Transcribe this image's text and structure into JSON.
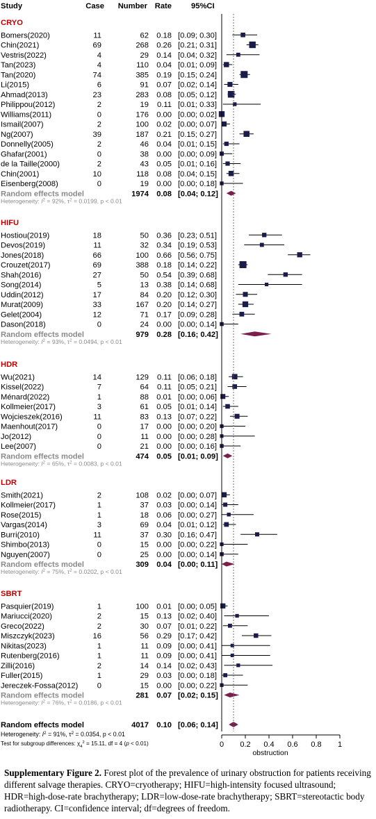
{
  "chart_data": {
    "type": "forest",
    "header": {
      "study": "Study",
      "case": "Case",
      "number": "Number",
      "rate": "Rate",
      "ci": "95%CI"
    },
    "xaxis": {
      "ticks": [
        "0",
        "0.2",
        "0.4",
        "0.6",
        "0.8",
        "1"
      ],
      "tick_values": [
        0,
        0.2,
        0.4,
        0.6,
        0.8,
        1
      ],
      "label": "obstruction",
      "range": [
        0,
        1
      ]
    },
    "overall_reference": 0.1,
    "colors": {
      "group": "#c00000",
      "square": "#1c1c4a",
      "diamond": "#7a1f4a",
      "model_label": "#8a8a8a",
      "het": "#555555"
    },
    "groups": [
      {
        "name": "CRYO",
        "studies": [
          {
            "study": "Bomers(2020)",
            "case": "11",
            "number": "62",
            "rate": "0.18",
            "ci": "[0.09; 0.30]",
            "est": 0.18,
            "lo": 0.09,
            "hi": 0.3
          },
          {
            "study": "Chin(2021)",
            "case": "69",
            "number": "268",
            "rate": "0.26",
            "ci": "[0.21; 0.31]",
            "est": 0.26,
            "lo": 0.21,
            "hi": 0.31
          },
          {
            "study": "Vestris(2022)",
            "case": "4",
            "number": "29",
            "rate": "0.14",
            "ci": "[0.04; 0.32]",
            "est": 0.14,
            "lo": 0.04,
            "hi": 0.32
          },
          {
            "study": "Tan(2023)",
            "case": "4",
            "number": "110",
            "rate": "0.04",
            "ci": "[0.01; 0.09]",
            "est": 0.04,
            "lo": 0.01,
            "hi": 0.09
          },
          {
            "study": "Tan(2020)",
            "case": "74",
            "number": "385",
            "rate": "0.19",
            "ci": "[0.15; 0.24]",
            "est": 0.19,
            "lo": 0.15,
            "hi": 0.24
          },
          {
            "study": "Li(2015)",
            "case": "6",
            "number": "91",
            "rate": "0.07",
            "ci": "[0.02; 0.14]",
            "est": 0.07,
            "lo": 0.02,
            "hi": 0.14
          },
          {
            "study": "Ahmad(2013)",
            "case": "23",
            "number": "283",
            "rate": "0.08",
            "ci": "[0.05; 0.12]",
            "est": 0.08,
            "lo": 0.05,
            "hi": 0.12
          },
          {
            "study": "Philippou(2012)",
            "case": "2",
            "number": "19",
            "rate": "0.11",
            "ci": "[0.01; 0.33]",
            "est": 0.11,
            "lo": 0.01,
            "hi": 0.33
          },
          {
            "study": "Williams(2011)",
            "case": "0",
            "number": "176",
            "rate": "0.00",
            "ci": "[0.00; 0.02]",
            "est": 0.0,
            "lo": 0.0,
            "hi": 0.02
          },
          {
            "study": "Ismail(2007)",
            "case": "2",
            "number": "100",
            "rate": "0.02",
            "ci": "[0.00; 0.07]",
            "est": 0.02,
            "lo": 0.0,
            "hi": 0.07
          },
          {
            "study": "Ng(2007)",
            "case": "39",
            "number": "187",
            "rate": "0.21",
            "ci": "[0.15; 0.27]",
            "est": 0.21,
            "lo": 0.15,
            "hi": 0.27
          },
          {
            "study": "Donnelly(2005)",
            "case": "2",
            "number": "46",
            "rate": "0.04",
            "ci": "[0.01; 0.15]",
            "est": 0.04,
            "lo": 0.01,
            "hi": 0.15
          },
          {
            "study": "Ghafar(2001)",
            "case": "0",
            "number": "38",
            "rate": "0.00",
            "ci": "[0.00; 0.09]",
            "est": 0.0,
            "lo": 0.0,
            "hi": 0.09
          },
          {
            "study": "de la Taille(2000)",
            "case": "2",
            "number": "43",
            "rate": "0.05",
            "ci": "[0.01; 0.16]",
            "est": 0.05,
            "lo": 0.01,
            "hi": 0.16
          },
          {
            "study": "Chin(2001)",
            "case": "10",
            "number": "118",
            "rate": "0.08",
            "ci": "[0.04; 0.15]",
            "est": 0.08,
            "lo": 0.04,
            "hi": 0.15
          },
          {
            "study": "Eisenberg(2008)",
            "case": "0",
            "number": "19",
            "rate": "0.00",
            "ci": "[0.00; 0.18]",
            "est": 0.0,
            "lo": 0.0,
            "hi": 0.18
          }
        ],
        "model": {
          "label": "Random effects model",
          "number": "1974",
          "rate": "0.08",
          "ci": "[0.04; 0.12]",
          "est": 0.08,
          "lo": 0.04,
          "hi": 0.12
        },
        "het": {
          "i2": "92%",
          "tau2": "0.0199",
          "p": "< 0.01"
        }
      },
      {
        "name": "HIFU",
        "studies": [
          {
            "study": "Hostiou(2019)",
            "case": "18",
            "number": "50",
            "rate": "0.36",
            "ci": "[0.23; 0.51]",
            "est": 0.36,
            "lo": 0.23,
            "hi": 0.51
          },
          {
            "study": "Devos(2019)",
            "case": "11",
            "number": "32",
            "rate": "0.34",
            "ci": "[0.19; 0.53]",
            "est": 0.34,
            "lo": 0.19,
            "hi": 0.53
          },
          {
            "study": "Jones(2018)",
            "case": "66",
            "number": "100",
            "rate": "0.66",
            "ci": "[0.56; 0.75]",
            "est": 0.66,
            "lo": 0.56,
            "hi": 0.75
          },
          {
            "study": "Crouzet(2017)",
            "case": "69",
            "number": "388",
            "rate": "0.18",
            "ci": "[0.14; 0.22]",
            "est": 0.18,
            "lo": 0.14,
            "hi": 0.22
          },
          {
            "study": "Shah(2016)",
            "case": "27",
            "number": "50",
            "rate": "0.54",
            "ci": "[0.39; 0.68]",
            "est": 0.54,
            "lo": 0.39,
            "hi": 0.68
          },
          {
            "study": "Song(2014)",
            "case": "5",
            "number": "13",
            "rate": "0.38",
            "ci": "[0.14; 0.68]",
            "est": 0.38,
            "lo": 0.14,
            "hi": 0.68
          },
          {
            "study": "Uddin(2012)",
            "case": "17",
            "number": "84",
            "rate": "0.20",
            "ci": "[0.12; 0.30]",
            "est": 0.2,
            "lo": 0.12,
            "hi": 0.3
          },
          {
            "study": "Murat(2009)",
            "case": "33",
            "number": "167",
            "rate": "0.20",
            "ci": "[0.14; 0.27]",
            "est": 0.2,
            "lo": 0.14,
            "hi": 0.27
          },
          {
            "study": "Gelet(2004)",
            "case": "12",
            "number": "71",
            "rate": "0.17",
            "ci": "[0.09; 0.28]",
            "est": 0.17,
            "lo": 0.09,
            "hi": 0.28
          },
          {
            "study": "Dason(2018)",
            "case": "0",
            "number": "24",
            "rate": "0.00",
            "ci": "[0.00; 0.14]",
            "est": 0.0,
            "lo": 0.0,
            "hi": 0.14
          }
        ],
        "model": {
          "label": "Random effects model",
          "number": "979",
          "rate": "0.28",
          "ci": "[0.16; 0.42]",
          "est": 0.28,
          "lo": 0.16,
          "hi": 0.42
        },
        "het": {
          "i2": "93%",
          "tau2": "0.0494",
          "p": "< 0.01"
        }
      },
      {
        "name": "HDR",
        "studies": [
          {
            "study": "Wu(2021)",
            "case": "14",
            "number": "129",
            "rate": "0.11",
            "ci": "[0.06; 0.18]",
            "est": 0.11,
            "lo": 0.06,
            "hi": 0.18
          },
          {
            "study": "Kissel(2022)",
            "case": "7",
            "number": "64",
            "rate": "0.11",
            "ci": "[0.05; 0.21]",
            "est": 0.11,
            "lo": 0.05,
            "hi": 0.21
          },
          {
            "study": "Ménard(2022)",
            "case": "1",
            "number": "88",
            "rate": "0.01",
            "ci": "[0.00; 0.06]",
            "est": 0.01,
            "lo": 0.0,
            "hi": 0.06
          },
          {
            "study": "Kollmeier(2017)",
            "case": "3",
            "number": "61",
            "rate": "0.05",
            "ci": "[0.01; 0.14]",
            "est": 0.05,
            "lo": 0.01,
            "hi": 0.14
          },
          {
            "study": "Wojcieszek(2016)",
            "case": "11",
            "number": "83",
            "rate": "0.13",
            "ci": "[0.07; 0.22]",
            "est": 0.13,
            "lo": 0.07,
            "hi": 0.22
          },
          {
            "study": "Maenhout(2017)",
            "case": "0",
            "number": "17",
            "rate": "0.00",
            "ci": "[0.00; 0.20]",
            "est": 0.0,
            "lo": 0.0,
            "hi": 0.2
          },
          {
            "study": "Jo(2012)",
            "case": "0",
            "number": "11",
            "rate": "0.00",
            "ci": "[0.00; 0.28]",
            "est": 0.0,
            "lo": 0.0,
            "hi": 0.28
          },
          {
            "study": "Lee(2007)",
            "case": "0",
            "number": "21",
            "rate": "0.00",
            "ci": "[0.00; 0.16]",
            "est": 0.0,
            "lo": 0.0,
            "hi": 0.16
          }
        ],
        "model": {
          "label": "Random effects model",
          "number": "474",
          "rate": "0.05",
          "ci": "[0.01; 0.09]",
          "est": 0.05,
          "lo": 0.01,
          "hi": 0.09
        },
        "het": {
          "i2": "65%",
          "tau2": "0.0083",
          "p": "< 0.01"
        }
      },
      {
        "name": "LDR",
        "studies": [
          {
            "study": "Smith(2021)",
            "case": "2",
            "number": "108",
            "rate": "0.02",
            "ci": "[0.00; 0.07]",
            "est": 0.02,
            "lo": 0.0,
            "hi": 0.07
          },
          {
            "study": "Kollmeier(2017)",
            "case": "1",
            "number": "37",
            "rate": "0.03",
            "ci": "[0.00; 0.14]",
            "est": 0.03,
            "lo": 0.0,
            "hi": 0.14
          },
          {
            "study": "Rose(2015)",
            "case": "1",
            "number": "18",
            "rate": "0.06",
            "ci": "[0.00; 0.27]",
            "est": 0.06,
            "lo": 0.0,
            "hi": 0.27
          },
          {
            "study": "Vargas(2014)",
            "case": "3",
            "number": "69",
            "rate": "0.04",
            "ci": "[0.01; 0.12]",
            "est": 0.04,
            "lo": 0.01,
            "hi": 0.12
          },
          {
            "study": "Burri(2010)",
            "case": "11",
            "number": "37",
            "rate": "0.30",
            "ci": "[0.16; 0.47]",
            "est": 0.3,
            "lo": 0.16,
            "hi": 0.47
          },
          {
            "study": "Shimbo(2013)",
            "case": "0",
            "number": "15",
            "rate": "0.00",
            "ci": "[0.00; 0.22]",
            "est": 0.0,
            "lo": 0.0,
            "hi": 0.22
          },
          {
            "study": "Nguyen(2007)",
            "case": "0",
            "number": "25",
            "rate": "0.00",
            "ci": "[0.00; 0.14]",
            "est": 0.0,
            "lo": 0.0,
            "hi": 0.14
          }
        ],
        "model": {
          "label": "Random effects model",
          "number": "309",
          "rate": "0.04",
          "ci": "[0.00; 0.11]",
          "est": 0.04,
          "lo": 0.0,
          "hi": 0.11
        },
        "het": {
          "i2": "75%",
          "tau2": "0.0202",
          "p": "< 0.01"
        }
      },
      {
        "name": "SBRT",
        "studies": [
          {
            "study": "Pasquier(2019)",
            "case": "1",
            "number": "100",
            "rate": "0.01",
            "ci": "[0.00; 0.05]",
            "est": 0.01,
            "lo": 0.0,
            "hi": 0.05
          },
          {
            "study": "Mariucci(2020)",
            "case": "2",
            "number": "15",
            "rate": "0.13",
            "ci": "[0.02; 0.40]",
            "est": 0.13,
            "lo": 0.02,
            "hi": 0.4
          },
          {
            "study": "Greco(2022)",
            "case": "2",
            "number": "30",
            "rate": "0.07",
            "ci": "[0.01; 0.22]",
            "est": 0.07,
            "lo": 0.01,
            "hi": 0.22
          },
          {
            "study": "Miszczyk(2023)",
            "case": "16",
            "number": "56",
            "rate": "0.29",
            "ci": "[0.17; 0.42]",
            "est": 0.29,
            "lo": 0.17,
            "hi": 0.42
          },
          {
            "study": "Nikitas(2023)",
            "case": "1",
            "number": "11",
            "rate": "0.09",
            "ci": "[0.00; 0.41]",
            "est": 0.09,
            "lo": 0.0,
            "hi": 0.41
          },
          {
            "study": "Rutenberg(2016)",
            "case": "1",
            "number": "11",
            "rate": "0.09",
            "ci": "[0.00; 0.41]",
            "est": 0.09,
            "lo": 0.0,
            "hi": 0.41
          },
          {
            "study": "Zilli(2016)",
            "case": "2",
            "number": "14",
            "rate": "0.14",
            "ci": "[0.02; 0.43]",
            "est": 0.14,
            "lo": 0.02,
            "hi": 0.43
          },
          {
            "study": "Fuller(2015)",
            "case": "1",
            "number": "29",
            "rate": "0.03",
            "ci": "[0.00; 0.18]",
            "est": 0.03,
            "lo": 0.0,
            "hi": 0.18
          },
          {
            "study": "Jereczek-Fossa(2012)",
            "case": "0",
            "number": "15",
            "rate": "0.00",
            "ci": "[0.00; 0.22]",
            "est": 0.0,
            "lo": 0.0,
            "hi": 0.22
          }
        ],
        "model": {
          "label": "Random effects model",
          "number": "281",
          "rate": "0.07",
          "ci": "[0.02; 0.15]",
          "est": 0.07,
          "lo": 0.02,
          "hi": 0.15
        },
        "het": {
          "i2": "76%",
          "tau2": "0.0186",
          "p": "< 0.01"
        }
      }
    ],
    "overall": {
      "label": "Random effects model",
      "number": "4017",
      "rate": "0.10",
      "ci": "[0.06; 0.14]",
      "est": 0.1,
      "lo": 0.06,
      "hi": 0.14,
      "het": {
        "i2": "91%",
        "tau2": "0.0354",
        "p": "< 0.01"
      },
      "subgroup_test": {
        "prefix": "Test for subgroup differences:",
        "chi_sym": "χ",
        "chi_sub": "4",
        "chi_sup": "2",
        "value": "= 15.11, df = 4 (",
        "p": "< 0.01)"
      }
    }
  },
  "text": {
    "het_prefix": "Heterogeneity:",
    "i_sym": "I",
    "i_sup": "2",
    "i_val": " = ",
    "tau_sym": ", τ",
    "tau_sup": "2",
    "tau_val": " = ",
    "p_sym": ", p"
  },
  "caption": {
    "label": "Supplementary Figure 2.",
    "text": " Forest plot of the prevalence of urinary obstruction for patients receiving different salvage therapies. CRYO=cryotherapy; HIFU=high-intensity focused ultrasound; HDR=high-dose-rate brachytherapy; LDR=low-dose-rate brachytherapy; SBRT=stereotactic body radiotherapy. CI=confidence interval; df=degrees of freedom."
  }
}
